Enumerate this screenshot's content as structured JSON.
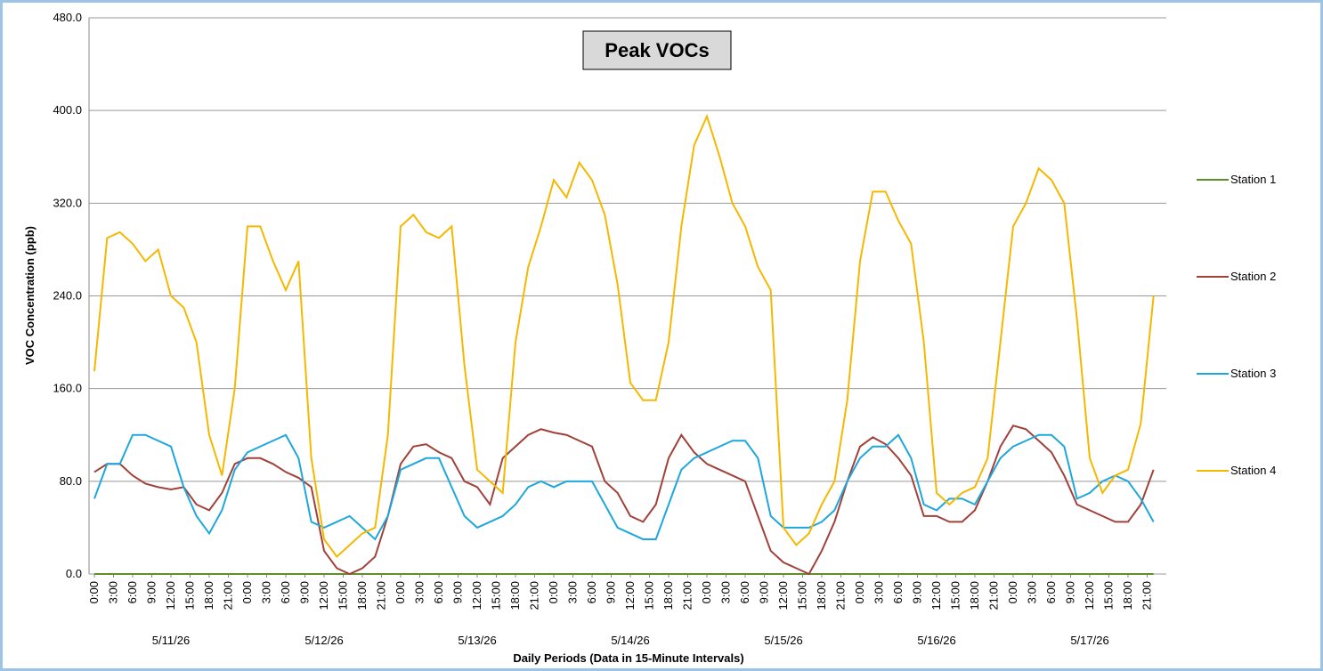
{
  "chart_data": {
    "type": "line",
    "title": "Peak VOCs",
    "ylabel": "VOC Concentration (ppb)",
    "xlabel": "Daily Periods (Data in 15-Minute Intervals)",
    "ylim": [
      0,
      480
    ],
    "yticks": [
      {
        "value": 0,
        "label": "0.0"
      },
      {
        "value": 80,
        "label": "80.0"
      },
      {
        "value": 160,
        "label": "160.0"
      },
      {
        "value": 240,
        "label": "240.0"
      },
      {
        "value": 320,
        "label": "320.0"
      },
      {
        "value": 400,
        "label": "400.0"
      },
      {
        "value": 480,
        "label": "480.0"
      }
    ],
    "grid": true,
    "legend": "right",
    "xlim": [
      0,
      168
    ],
    "xticks": [
      {
        "value": 0,
        "label": "0:00"
      },
      {
        "value": 3,
        "label": "3:00"
      },
      {
        "value": 6,
        "label": "6:00"
      },
      {
        "value": 9,
        "label": "9:00"
      },
      {
        "value": 12,
        "label": "12:00"
      },
      {
        "value": 15,
        "label": "15:00"
      },
      {
        "value": 18,
        "label": "18:00"
      },
      {
        "value": 21,
        "label": "21:00"
      },
      {
        "value": 24,
        "label": "0:00"
      },
      {
        "value": 27,
        "label": "3:00"
      },
      {
        "value": 30,
        "label": "6:00"
      },
      {
        "value": 33,
        "label": "9:00"
      },
      {
        "value": 36,
        "label": "12:00"
      },
      {
        "value": 39,
        "label": "15:00"
      },
      {
        "value": 42,
        "label": "18:00"
      },
      {
        "value": 45,
        "label": "21:00"
      },
      {
        "value": 48,
        "label": "0:00"
      },
      {
        "value": 51,
        "label": "3:00"
      },
      {
        "value": 54,
        "label": "6:00"
      },
      {
        "value": 57,
        "label": "9:00"
      },
      {
        "value": 60,
        "label": "12:00"
      },
      {
        "value": 63,
        "label": "15:00"
      },
      {
        "value": 66,
        "label": "18:00"
      },
      {
        "value": 69,
        "label": "21:00"
      },
      {
        "value": 72,
        "label": "0:00"
      },
      {
        "value": 75,
        "label": "3:00"
      },
      {
        "value": 78,
        "label": "6:00"
      },
      {
        "value": 81,
        "label": "9:00"
      },
      {
        "value": 84,
        "label": "12:00"
      },
      {
        "value": 87,
        "label": "15:00"
      },
      {
        "value": 90,
        "label": "18:00"
      },
      {
        "value": 93,
        "label": "21:00"
      },
      {
        "value": 96,
        "label": "0:00"
      },
      {
        "value": 99,
        "label": "3:00"
      },
      {
        "value": 102,
        "label": "6:00"
      },
      {
        "value": 105,
        "label": "9:00"
      },
      {
        "value": 108,
        "label": "12:00"
      },
      {
        "value": 111,
        "label": "15:00"
      },
      {
        "value": 114,
        "label": "18:00"
      },
      {
        "value": 117,
        "label": "21:00"
      },
      {
        "value": 120,
        "label": "0:00"
      },
      {
        "value": 123,
        "label": "3:00"
      },
      {
        "value": 126,
        "label": "6:00"
      },
      {
        "value": 129,
        "label": "9:00"
      },
      {
        "value": 132,
        "label": "12:00"
      },
      {
        "value": 135,
        "label": "15:00"
      },
      {
        "value": 138,
        "label": "18:00"
      },
      {
        "value": 141,
        "label": "21:00"
      },
      {
        "value": 144,
        "label": "0:00"
      },
      {
        "value": 147,
        "label": "3:00"
      },
      {
        "value": 150,
        "label": "6:00"
      },
      {
        "value": 153,
        "label": "9:00"
      },
      {
        "value": 156,
        "label": "12:00"
      },
      {
        "value": 159,
        "label": "15:00"
      },
      {
        "value": 162,
        "label": "18:00"
      },
      {
        "value": 165,
        "label": "21:00"
      }
    ],
    "groups": [
      "5/11/26",
      "5/12/26",
      "5/13/26",
      "5/14/26",
      "5/15/26",
      "5/16/26",
      "5/17/26"
    ],
    "x": [
      0,
      2,
      4,
      6,
      8,
      10,
      12,
      14,
      16,
      18,
      20,
      22,
      24,
      26,
      28,
      30,
      32,
      34,
      36,
      38,
      40,
      42,
      44,
      46,
      48,
      50,
      52,
      54,
      56,
      58,
      60,
      62,
      64,
      66,
      68,
      70,
      72,
      74,
      76,
      78,
      80,
      82,
      84,
      86,
      88,
      90,
      92,
      94,
      96,
      98,
      100,
      102,
      104,
      106,
      108,
      110,
      112,
      114,
      116,
      118,
      120,
      122,
      124,
      126,
      128,
      130,
      132,
      134,
      136,
      138,
      140,
      142,
      144,
      146,
      148,
      150,
      152,
      154,
      156,
      158,
      160,
      162,
      164,
      166
    ],
    "series": [
      {
        "name": "Station 1",
        "color": "#5f8f2a",
        "values": [
          0,
          0,
          0,
          0,
          0,
          0,
          0,
          0,
          0,
          0,
          0,
          0,
          0,
          0,
          0,
          0,
          0,
          0,
          0,
          0,
          0,
          0,
          0,
          0,
          0,
          0,
          0,
          0,
          0,
          0,
          0,
          0,
          0,
          0,
          0,
          0,
          0,
          0,
          0,
          0,
          0,
          0,
          0,
          0,
          0,
          0,
          0,
          0,
          0,
          0,
          0,
          0,
          0,
          0,
          0,
          0,
          0,
          0,
          0,
          0,
          0,
          0,
          0,
          0,
          0,
          0,
          0,
          0,
          0,
          0,
          0,
          0,
          0,
          0,
          0,
          0,
          0,
          0,
          0,
          0,
          0,
          0,
          0,
          0
        ]
      },
      {
        "name": "Station 2",
        "color": "#a0413a",
        "values": [
          88,
          95,
          95,
          85,
          78,
          75,
          73,
          75,
          60,
          55,
          70,
          95,
          100,
          100,
          95,
          88,
          83,
          75,
          20,
          5,
          0,
          5,
          15,
          50,
          95,
          110,
          112,
          105,
          100,
          80,
          75,
          60,
          100,
          110,
          120,
          125,
          122,
          120,
          115,
          110,
          80,
          70,
          50,
          45,
          60,
          100,
          120,
          105,
          95,
          90,
          85,
          80,
          50,
          20,
          10,
          5,
          0,
          20,
          45,
          80,
          110,
          118,
          112,
          100,
          85,
          50,
          50,
          45,
          45,
          55,
          80,
          110,
          128,
          125,
          115,
          105,
          85,
          60,
          55,
          50,
          45,
          45,
          60,
          90
        ]
      },
      {
        "name": "Station 3",
        "color": "#1ea7dc",
        "values": [
          65,
          95,
          95,
          120,
          120,
          115,
          110,
          75,
          50,
          35,
          55,
          90,
          105,
          110,
          115,
          120,
          100,
          45,
          40,
          45,
          50,
          40,
          30,
          50,
          90,
          95,
          100,
          100,
          75,
          50,
          40,
          45,
          50,
          60,
          75,
          80,
          75,
          80,
          80,
          80,
          60,
          40,
          35,
          30,
          30,
          60,
          90,
          100,
          105,
          110,
          115,
          115,
          100,
          50,
          40,
          40,
          40,
          45,
          55,
          80,
          100,
          110,
          110,
          120,
          100,
          60,
          55,
          65,
          65,
          60,
          80,
          100,
          110,
          115,
          120,
          120,
          110,
          65,
          70,
          80,
          85,
          80,
          65,
          45
        ]
      },
      {
        "name": "Station 4",
        "color": "#f5b800",
        "values": [
          175,
          290,
          295,
          285,
          270,
          280,
          240,
          230,
          200,
          120,
          85,
          160,
          300,
          300,
          270,
          245,
          270,
          100,
          30,
          15,
          25,
          35,
          40,
          120,
          300,
          310,
          295,
          290,
          300,
          180,
          90,
          80,
          70,
          200,
          265,
          300,
          340,
          325,
          355,
          340,
          310,
          250,
          165,
          150,
          150,
          200,
          300,
          370,
          395,
          360,
          320,
          300,
          265,
          245,
          40,
          25,
          35,
          60,
          80,
          150,
          270,
          330,
          330,
          305,
          285,
          200,
          70,
          60,
          70,
          75,
          100,
          200,
          300,
          320,
          350,
          340,
          320,
          220,
          100,
          70,
          85,
          90,
          130,
          240
        ]
      }
    ]
  }
}
